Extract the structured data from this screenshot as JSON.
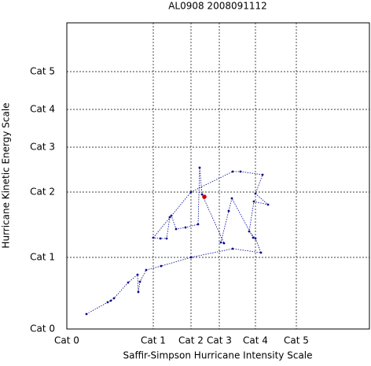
{
  "chart_data": {
    "type": "line",
    "title": "AL0908 2008091112",
    "x_label": "Saffir-Simpson Hurricane Intensity Scale",
    "y_label": "Hurricane Kinetic Energy Scale",
    "xlim": [
      0,
      385
    ],
    "ylim": [
      0,
      389
    ],
    "xticks": [
      {
        "value": 0,
        "label": "Cat 0"
      },
      {
        "value": 110,
        "label": "Cat 1"
      },
      {
        "value": 158,
        "label": "Cat 2"
      },
      {
        "value": 194,
        "label": "Cat 3"
      },
      {
        "value": 240,
        "label": "Cat 4"
      },
      {
        "value": 292,
        "label": "Cat 5"
      }
    ],
    "yticks": [
      {
        "value": 0,
        "label": "Cat 0"
      },
      {
        "value": 91,
        "label": "Cat 1"
      },
      {
        "value": 174,
        "label": "Cat 2"
      },
      {
        "value": 231,
        "label": "Cat 3"
      },
      {
        "value": 279,
        "label": "Cat 4"
      },
      {
        "value": 327,
        "label": "Cat 5"
      }
    ],
    "grid": true,
    "series": [
      {
        "color": "#00008b",
        "x": [
          25,
          52,
          56,
          60,
          78,
          90,
          91,
          93,
          101,
          120,
          158,
          211,
          247,
          240,
          232,
          238,
          256,
          240,
          249,
          221,
          211,
          158,
          110,
          119,
          127,
          131,
          133,
          139,
          151,
          167,
          169,
          172,
          200,
          196,
          206,
          210,
          237
        ],
        "values": [
          19,
          34,
          36,
          39,
          59,
          69,
          47,
          60,
          75,
          80,
          91,
          102,
          97,
          115,
          124,
          162,
          158,
          172,
          196,
          200,
          200,
          174,
          116,
          115,
          115,
          142,
          144,
          127,
          129,
          133,
          205,
          171,
          109,
          110,
          150,
          166,
          116
        ]
      },
      {
        "color": "#cc0000",
        "x": [
          175
        ],
        "values": [
          168
        ]
      }
    ]
  }
}
